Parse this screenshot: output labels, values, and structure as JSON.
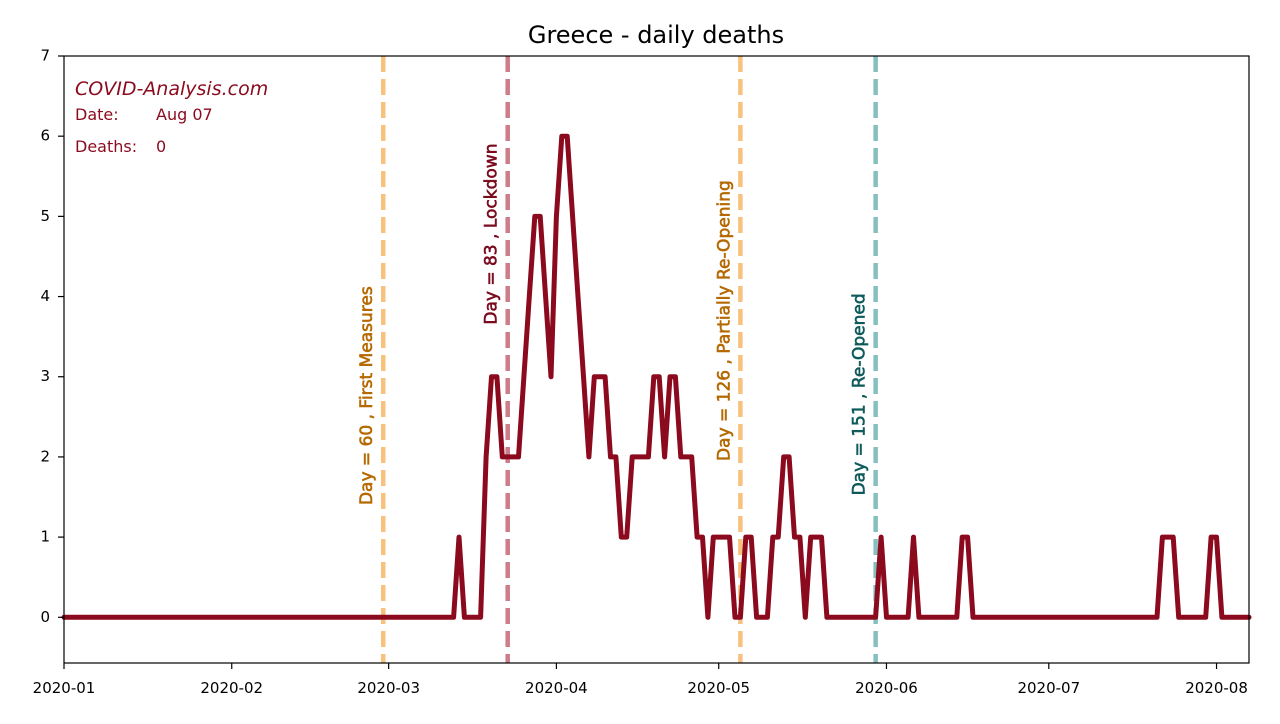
{
  "chart_data": {
    "type": "line",
    "title": "Greece - daily deaths",
    "xlabel": "",
    "ylabel": "",
    "x_axis": {
      "type": "date",
      "range": [
        "2020-01-01",
        "2020-08-07"
      ],
      "ticks": [
        "2020-01",
        "2020-02",
        "2020-03",
        "2020-04",
        "2020-05",
        "2020-06",
        "2020-07",
        "2020-08"
      ]
    },
    "y_axis": {
      "range": [
        -0.57,
        7
      ],
      "ticks": [
        0,
        1,
        2,
        3,
        4,
        5,
        6,
        7
      ]
    },
    "grid": false,
    "series": [
      {
        "color": "#8b0a1e",
        "points": [
          [
            "2020-01-01",
            0
          ],
          [
            "2020-03-13",
            0
          ],
          [
            "2020-03-14",
            1
          ],
          [
            "2020-03-15",
            0
          ],
          [
            "2020-03-18",
            0
          ],
          [
            "2020-03-19",
            2
          ],
          [
            "2020-03-20",
            3
          ],
          [
            "2020-03-21",
            3
          ],
          [
            "2020-03-22",
            2
          ],
          [
            "2020-03-25",
            2
          ],
          [
            "2020-03-26",
            3
          ],
          [
            "2020-03-27",
            4
          ],
          [
            "2020-03-28",
            5
          ],
          [
            "2020-03-29",
            5
          ],
          [
            "2020-03-30",
            4
          ],
          [
            "2020-03-31",
            3
          ],
          [
            "2020-04-01",
            5
          ],
          [
            "2020-04-02",
            6
          ],
          [
            "2020-04-03",
            6
          ],
          [
            "2020-04-04",
            5
          ],
          [
            "2020-04-05",
            4
          ],
          [
            "2020-04-06",
            3
          ],
          [
            "2020-04-07",
            2
          ],
          [
            "2020-04-08",
            3
          ],
          [
            "2020-04-10",
            3
          ],
          [
            "2020-04-11",
            2
          ],
          [
            "2020-04-12",
            2
          ],
          [
            "2020-04-13",
            1
          ],
          [
            "2020-04-14",
            1
          ],
          [
            "2020-04-15",
            2
          ],
          [
            "2020-04-18",
            2
          ],
          [
            "2020-04-19",
            3
          ],
          [
            "2020-04-20",
            3
          ],
          [
            "2020-04-21",
            2
          ],
          [
            "2020-04-22",
            3
          ],
          [
            "2020-04-23",
            3
          ],
          [
            "2020-04-24",
            2
          ],
          [
            "2020-04-26",
            2
          ],
          [
            "2020-04-27",
            1
          ],
          [
            "2020-04-28",
            1
          ],
          [
            "2020-04-29",
            0
          ],
          [
            "2020-04-30",
            1
          ],
          [
            "2020-05-03",
            1
          ],
          [
            "2020-05-04",
            0
          ],
          [
            "2020-05-05",
            0
          ],
          [
            "2020-05-06",
            1
          ],
          [
            "2020-05-07",
            1
          ],
          [
            "2020-05-08",
            0
          ],
          [
            "2020-05-10",
            0
          ],
          [
            "2020-05-11",
            1
          ],
          [
            "2020-05-12",
            1
          ],
          [
            "2020-05-13",
            2
          ],
          [
            "2020-05-14",
            2
          ],
          [
            "2020-05-15",
            1
          ],
          [
            "2020-05-16",
            1
          ],
          [
            "2020-05-17",
            0
          ],
          [
            "2020-05-18",
            1
          ],
          [
            "2020-05-20",
            1
          ],
          [
            "2020-05-21",
            0
          ],
          [
            "2020-05-30",
            0
          ],
          [
            "2020-05-31",
            1
          ],
          [
            "2020-06-01",
            0
          ],
          [
            "2020-06-05",
            0
          ],
          [
            "2020-06-06",
            1
          ],
          [
            "2020-06-07",
            0
          ],
          [
            "2020-06-14",
            0
          ],
          [
            "2020-06-15",
            1
          ],
          [
            "2020-06-16",
            1
          ],
          [
            "2020-06-17",
            0
          ],
          [
            "2020-07-21",
            0
          ],
          [
            "2020-07-22",
            1
          ],
          [
            "2020-07-24",
            1
          ],
          [
            "2020-07-25",
            0
          ],
          [
            "2020-07-30",
            0
          ],
          [
            "2020-07-31",
            1
          ],
          [
            "2020-08-01",
            1
          ],
          [
            "2020-08-02",
            0
          ],
          [
            "2020-08-07",
            0
          ]
        ]
      }
    ],
    "annotations": [
      {
        "date": "2020-02-29",
        "label": "Day = 60 , First Measures",
        "line_color": "#f8c17e",
        "text_color": "#b56900",
        "label_bottom_y": 1.4
      },
      {
        "date": "2020-03-23",
        "label": "Day = 83 , Lockdown",
        "line_color": "#cd7c8a",
        "text_color": "#7a0a1e",
        "label_bottom_y": 3.65
      },
      {
        "date": "2020-05-05",
        "label": "Day = 126 , Partially Re-Opening",
        "line_color": "#f8c17e",
        "text_color": "#b56900",
        "label_bottom_y": 1.95
      },
      {
        "date": "2020-05-30",
        "label": "Day = 151 , Re-Opened",
        "line_color": "#86bfbf",
        "text_color": "#0e5a5a",
        "label_bottom_y": 1.52
      }
    ],
    "info_box": {
      "brand": "COVID-Analysis.com",
      "date_label": "Date:",
      "date_value": "Aug 07",
      "deaths_label": "Deaths:",
      "deaths_value": "0",
      "color": "#8b0a1e"
    }
  }
}
